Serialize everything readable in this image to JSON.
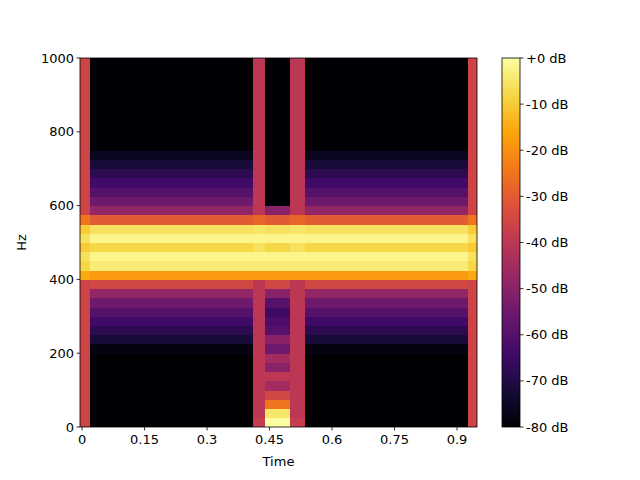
{
  "chart_data": {
    "type": "heatmap",
    "x_label": "Time",
    "y_label": "Hz",
    "xlim": [
      -0.005,
      0.948
    ],
    "ylim": [
      0,
      1000
    ],
    "xticks": [
      0,
      0.15,
      0.3,
      0.45,
      0.6,
      0.75,
      0.9
    ],
    "yticks": [
      0,
      200,
      400,
      600,
      800,
      1000
    ],
    "x_edges": [
      -0.005,
      0.019,
      0.41,
      0.44,
      0.5,
      0.535,
      0.926,
      0.948
    ],
    "y_edges": [
      0,
      25,
      50,
      75,
      100,
      125,
      150,
      175,
      200,
      225,
      250,
      275,
      300,
      325,
      350,
      375,
      400,
      425,
      450,
      475,
      500,
      525,
      550,
      575,
      600,
      625,
      650,
      675,
      700,
      725,
      750,
      775,
      800,
      825,
      850,
      875,
      900,
      925,
      950,
      975,
      1000
    ],
    "cells": [
      [
        -36,
        -36,
        -36,
        -36,
        -36,
        -36,
        -36,
        -36,
        -36,
        -36,
        -36,
        -36,
        -36,
        -36,
        -36,
        -36,
        -15,
        -8,
        -6,
        -10,
        -6,
        -10,
        -25,
        -36,
        -36,
        -36,
        -36,
        -36,
        -36,
        -36,
        -36,
        -36,
        -36,
        -36,
        -36,
        -36,
        -36,
        -36,
        -36,
        -36
      ],
      [
        -80,
        -80,
        -80,
        -80,
        -80,
        -80,
        -80,
        -80,
        -78,
        -72,
        -68,
        -64,
        -60,
        -55,
        -48,
        -35,
        -18,
        -4,
        -2,
        -8,
        -2,
        -6,
        -30,
        -48,
        -55,
        -60,
        -64,
        -68,
        -72,
        -76,
        -80,
        -80,
        -80,
        -80,
        -80,
        -80,
        -80,
        -80,
        -80,
        -80
      ],
      [
        -38,
        -40,
        -40,
        -40,
        -40,
        -40,
        -40,
        -40,
        -40,
        -40,
        -40,
        -40,
        -40,
        -40,
        -40,
        -40,
        -18,
        -4,
        -2,
        -6,
        -2,
        -5,
        -28,
        -40,
        -40,
        -40,
        -40,
        -40,
        -40,
        -40,
        -40,
        -40,
        -40,
        -40,
        -40,
        -40,
        -40,
        -40,
        -40,
        -40
      ],
      [
        0,
        -5,
        -25,
        -35,
        -45,
        -40,
        -50,
        -45,
        -55,
        -50,
        -60,
        -62,
        -65,
        -60,
        -50,
        -35,
        -18,
        -4,
        -2,
        -8,
        -2,
        -6,
        -30,
        -50,
        -80,
        -80,
        -80,
        -80,
        -80,
        -80,
        -80,
        -80,
        -80,
        -80,
        -80,
        -80,
        -80,
        -80,
        -80,
        -80
      ],
      [
        -38,
        -40,
        -40,
        -40,
        -40,
        -40,
        -40,
        -40,
        -40,
        -40,
        -40,
        -40,
        -40,
        -40,
        -40,
        -40,
        -18,
        -4,
        -2,
        -6,
        -2,
        -5,
        -28,
        -40,
        -40,
        -40,
        -40,
        -40,
        -40,
        -40,
        -40,
        -40,
        -40,
        -40,
        -40,
        -40,
        -40,
        -40,
        -40,
        -40
      ],
      [
        -80,
        -80,
        -80,
        -80,
        -80,
        -80,
        -80,
        -80,
        -78,
        -72,
        -68,
        -64,
        -60,
        -55,
        -48,
        -35,
        -18,
        -4,
        -2,
        -8,
        -2,
        -6,
        -30,
        -48,
        -55,
        -60,
        -64,
        -68,
        -72,
        -76,
        -80,
        -80,
        -80,
        -80,
        -80,
        -80,
        -80,
        -80,
        -80,
        -80
      ],
      [
        -36,
        -36,
        -36,
        -36,
        -36,
        -36,
        -36,
        -36,
        -36,
        -36,
        -36,
        -36,
        -36,
        -36,
        -36,
        -36,
        -15,
        -8,
        -6,
        -10,
        -6,
        -10,
        -25,
        -36,
        -36,
        -36,
        -36,
        -36,
        -36,
        -36,
        -36,
        -36,
        -36,
        -36,
        -36,
        -36,
        -36,
        -36,
        -36,
        -36
      ]
    ],
    "color_range": [
      -80,
      0
    ],
    "color_ticks": [
      {
        "value": 0,
        "label": "+0 dB"
      },
      {
        "value": -10,
        "label": "-10 dB"
      },
      {
        "value": -20,
        "label": "-20 dB"
      },
      {
        "value": -30,
        "label": "-30 dB"
      },
      {
        "value": -40,
        "label": "-40 dB"
      },
      {
        "value": -50,
        "label": "-50 dB"
      },
      {
        "value": -60,
        "label": "-60 dB"
      },
      {
        "value": -70,
        "label": "-70 dB"
      },
      {
        "value": -80,
        "label": "-80 dB"
      }
    ]
  }
}
